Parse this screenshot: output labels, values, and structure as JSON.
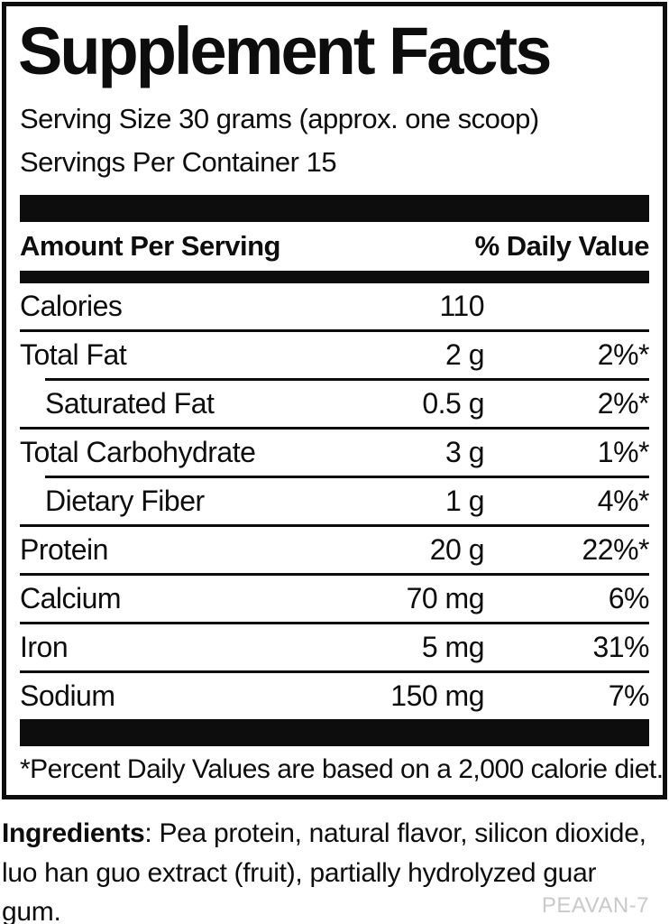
{
  "label": {
    "title": "Supplement Facts",
    "serving_size": "Serving Size 30 grams (approx. one scoop)",
    "servings_per_container": "Servings Per Container 15",
    "header": {
      "amount": "Amount Per Serving",
      "daily_value": "% Daily Value"
    },
    "rows": [
      {
        "name": "Calories",
        "amount": "110",
        "dv": "",
        "indent": false
      },
      {
        "name": "Total Fat",
        "amount": "2 g",
        "dv": "2%*",
        "indent": false
      },
      {
        "name": "Saturated Fat",
        "amount": "0.5 g",
        "dv": "2%*",
        "indent": true
      },
      {
        "name": "Total Carbohydrate",
        "amount": "3 g",
        "dv": "1%*",
        "indent": false
      },
      {
        "name": "Dietary Fiber",
        "amount": "1 g",
        "dv": "4%*",
        "indent": true
      },
      {
        "name": "Protein",
        "amount": "20 g",
        "dv": "22%*",
        "indent": false
      },
      {
        "name": "Calcium",
        "amount": "70 mg",
        "dv": "6%",
        "indent": false
      },
      {
        "name": "Iron",
        "amount": "5 mg",
        "dv": "31%",
        "indent": false
      },
      {
        "name": "Sodium",
        "amount": "150 mg",
        "dv": "7%",
        "indent": false
      }
    ],
    "footnote": "*Percent Daily Values are based on a 2,000 calorie diet."
  },
  "ingredients": {
    "label": "Ingredients",
    "text": ": Pea protein, natural flavor, silicon dioxide, luo han guo extract (fruit), partially hydrolyzed guar gum."
  },
  "footer": {
    "product_code": "PEAVAN-7"
  },
  "colors": {
    "text": "#0d0d0d",
    "bar": "#0d0d0d",
    "muted_code": "#c9c9c9",
    "background": "#ffffff"
  }
}
